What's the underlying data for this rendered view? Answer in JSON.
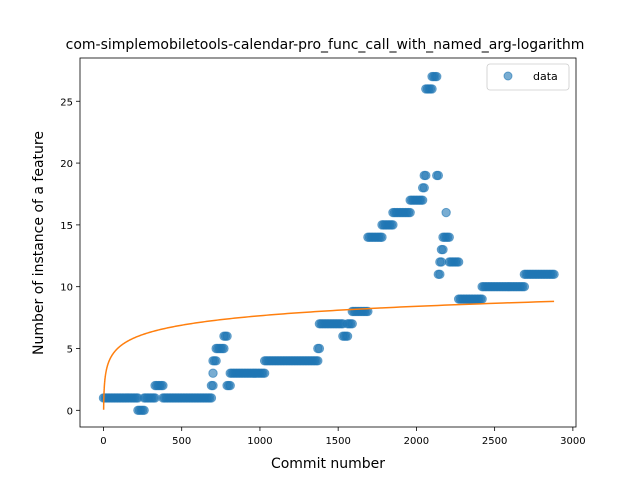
{
  "chart_data": {
    "type": "scatter",
    "title": "com-simplemobiletools-calendar-pro_func_call_with_named_arg-logarithm",
    "xlabel": "Commit number",
    "ylabel": "Number of instance of a feature",
    "xlim": [
      -150,
      3020
    ],
    "ylim": [
      -1.35,
      28.5
    ],
    "xticks": [
      0,
      500,
      1000,
      1500,
      2000,
      2500,
      3000
    ],
    "yticks": [
      0,
      5,
      10,
      15,
      20,
      25
    ],
    "legend": {
      "label": "data",
      "position": "top-right"
    },
    "colors": {
      "data": "#1f77b4",
      "fit": "#ff7f0e"
    },
    "series": [
      {
        "name": "data",
        "kind": "scatter",
        "segments": [
          {
            "x_start": 0,
            "x_end": 220,
            "y": 1
          },
          {
            "x_start": 220,
            "x_end": 260,
            "y": 0
          },
          {
            "x_start": 260,
            "x_end": 330,
            "y": 1
          },
          {
            "x_start": 330,
            "x_end": 380,
            "y": 2
          },
          {
            "x_start": 380,
            "x_end": 690,
            "y": 1
          },
          {
            "x_start": 690,
            "x_end": 700,
            "y": 2
          },
          {
            "x_start": 700,
            "x_end": 720,
            "y": 4
          },
          {
            "x_start": 720,
            "x_end": 770,
            "y": 5
          },
          {
            "x_start": 770,
            "x_end": 790,
            "y": 6
          },
          {
            "x_start": 790,
            "x_end": 810,
            "y": 2
          },
          {
            "x_start": 810,
            "x_end": 1030,
            "y": 3
          },
          {
            "x_start": 1030,
            "x_end": 1370,
            "y": 4
          },
          {
            "x_start": 1370,
            "x_end": 1380,
            "y": 5
          },
          {
            "x_start": 1380,
            "x_end": 1530,
            "y": 7
          },
          {
            "x_start": 1530,
            "x_end": 1560,
            "y": 6
          },
          {
            "x_start": 1560,
            "x_end": 1590,
            "y": 7
          },
          {
            "x_start": 1590,
            "x_end": 1690,
            "y": 8
          },
          {
            "x_start": 1690,
            "x_end": 1780,
            "y": 14
          },
          {
            "x_start": 1780,
            "x_end": 1850,
            "y": 15
          },
          {
            "x_start": 1850,
            "x_end": 1960,
            "y": 16
          },
          {
            "x_start": 1960,
            "x_end": 2040,
            "y": 17
          },
          {
            "x_start": 2040,
            "x_end": 2050,
            "y": 18
          },
          {
            "x_start": 2050,
            "x_end": 2060,
            "y": 19
          },
          {
            "x_start": 2060,
            "x_end": 2100,
            "y": 26
          },
          {
            "x_start": 2100,
            "x_end": 2130,
            "y": 27
          },
          {
            "x_start": 2130,
            "x_end": 2140,
            "y": 19
          },
          {
            "x_start": 2140,
            "x_end": 2150,
            "y": 11
          },
          {
            "x_start": 2150,
            "x_end": 2160,
            "y": 12
          },
          {
            "x_start": 2160,
            "x_end": 2170,
            "y": 13
          },
          {
            "x_start": 2170,
            "x_end": 2210,
            "y": 14
          },
          {
            "x_start": 2210,
            "x_end": 2270,
            "y": 12
          },
          {
            "x_start": 2270,
            "x_end": 2420,
            "y": 9
          },
          {
            "x_start": 2420,
            "x_end": 2690,
            "y": 10
          },
          {
            "x_start": 2690,
            "x_end": 2880,
            "y": 11
          }
        ],
        "points": [
          {
            "x": 700,
            "y": 3
          },
          {
            "x": 2190,
            "y": 16
          }
        ]
      },
      {
        "kind": "line",
        "function": "a*log(x)+b",
        "a": 1.1,
        "b": 0.05,
        "x_range": [
          1,
          2880
        ]
      }
    ]
  }
}
